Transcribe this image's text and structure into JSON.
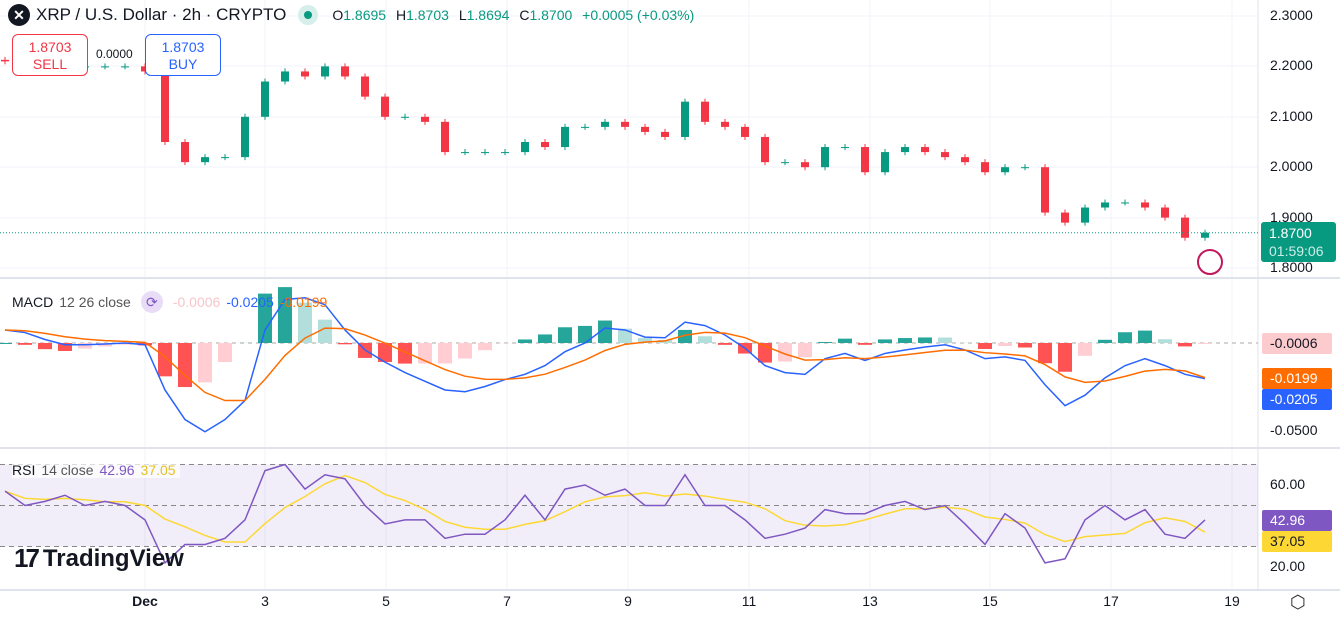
{
  "header": {
    "symbol_icon": "xrp-logo",
    "title": "XRP / U.S. Dollar · 2h · CRYPTO",
    "market_status": "open",
    "o_label": "O",
    "o": "1.8695",
    "h_label": "H",
    "h": "1.8703",
    "l_label": "L",
    "l": "1.8694",
    "c_label": "C",
    "c": "1.8700",
    "change": "+0.0005 (+0.03%)"
  },
  "trade": {
    "sell_price": "1.8703",
    "sell_label": "SELL",
    "spread": "0.0000",
    "buy_price": "1.8703",
    "buy_label": "BUY"
  },
  "price_axis": {
    "ticks": [
      "2.3000",
      "2.2000",
      "2.1000",
      "2.0000",
      "1.9000",
      "1.8000"
    ],
    "current_price": "1.8700",
    "countdown": "01:59:06"
  },
  "macd_legend": {
    "name": "MACD",
    "params": "12 26 close",
    "histogram": "-0.0006",
    "macd": "-0.0205",
    "signal": "-0.0199"
  },
  "macd_axis": {
    "ticks": [
      "-0.0500"
    ],
    "hist_tag": "-0.0006",
    "signal_tag": "-0.0199",
    "macd_tag": "-0.0205"
  },
  "rsi_legend": {
    "name": "RSI",
    "params": "14 close",
    "rsi": "42.96",
    "ma": "37.05"
  },
  "rsi_axis": {
    "ticks": [
      "60.00",
      "20.00"
    ],
    "rsi_tag": "42.96",
    "ma_tag": "37.05"
  },
  "x_axis": {
    "ticks": [
      "Dec",
      "3",
      "5",
      "7",
      "9",
      "11",
      "13",
      "15",
      "17",
      "19"
    ]
  },
  "watermark": "TradingView",
  "colors": {
    "up": "#089981",
    "down": "#f23645",
    "macd": "#2962ff",
    "signal": "#ff6d00",
    "rsi": "#7e57c2",
    "rsi_ma": "#fdd835"
  },
  "chart_data": {
    "type": "candlestick",
    "note_interval": "8h samples",
    "x": [
      "Nov 28 16:00",
      "Nov 29 00:00",
      "Nov 29 08:00",
      "Nov 29 16:00",
      "Nov 30 00:00",
      "Nov 30 08:00",
      "Nov 30 16:00",
      "Dec 1 00:00",
      "Dec 1 08:00",
      "Dec 1 16:00",
      "Dec 2 00:00",
      "Dec 2 08:00",
      "Dec 2 16:00",
      "Dec 3 00:00",
      "Dec 3 08:00",
      "Dec 3 16:00",
      "Dec 4 00:00",
      "Dec 4 08:00",
      "Dec 4 16:00",
      "Dec 5 00:00",
      "Dec 5 08:00",
      "Dec 5 16:00",
      "Dec 6 00:00",
      "Dec 6 08:00",
      "Dec 6 16:00",
      "Dec 7 00:00",
      "Dec 7 08:00",
      "Dec 7 16:00",
      "Dec 8 00:00",
      "Dec 8 08:00",
      "Dec 8 16:00",
      "Dec 9 00:00",
      "Dec 9 08:00",
      "Dec 9 16:00",
      "Dec 10 00:00",
      "Dec 10 08:00",
      "Dec 10 16:00",
      "Dec 11 00:00",
      "Dec 11 08:00",
      "Dec 11 16:00",
      "Dec 12 00:00",
      "Dec 12 08:00",
      "Dec 12 16:00",
      "Dec 13 00:00",
      "Dec 13 08:00",
      "Dec 13 16:00",
      "Dec 14 00:00",
      "Dec 14 08:00",
      "Dec 14 16:00",
      "Dec 15 00:00",
      "Dec 15 08:00",
      "Dec 15 16:00",
      "Dec 16 00:00",
      "Dec 16 08:00",
      "Dec 16 16:00",
      "Dec 17 00:00",
      "Dec 17 08:00",
      "Dec 17 16:00",
      "Dec 18 00:00",
      "Dec 18 08:00",
      "Dec 18 16:00"
    ],
    "close": [
      2.21,
      2.2,
      2.2,
      2.2,
      2.2,
      2.2,
      2.2,
      2.19,
      2.05,
      2.01,
      2.02,
      2.02,
      2.1,
      2.17,
      2.19,
      2.18,
      2.2,
      2.18,
      2.14,
      2.1,
      2.1,
      2.09,
      2.03,
      2.03,
      2.03,
      2.03,
      2.05,
      2.04,
      2.08,
      2.08,
      2.09,
      2.08,
      2.07,
      2.06,
      2.13,
      2.09,
      2.08,
      2.06,
      2.01,
      2.01,
      2.0,
      2.04,
      2.04,
      1.99,
      2.03,
      2.04,
      2.03,
      2.02,
      2.01,
      1.99,
      2.0,
      2.0,
      1.91,
      1.89,
      1.92,
      1.93,
      1.93,
      1.92,
      1.9,
      1.86,
      1.87
    ],
    "macd": [
      0.0075,
      0.006,
      0.002,
      -0.001,
      -0.001,
      -0.0006,
      0,
      -0.001,
      -0.027,
      -0.044,
      -0.051,
      -0.044,
      -0.033,
      0.0075,
      0.025,
      0.026,
      0.022,
      0.0075,
      -0.004,
      -0.011,
      -0.017,
      -0.022,
      -0.027,
      -0.028,
      -0.025,
      -0.021,
      -0.018,
      -0.013,
      -0.005,
      0,
      0.0086,
      0.0075,
      0.0034,
      0.003,
      0.012,
      0.01,
      0.0046,
      -0.003,
      -0.013,
      -0.017,
      -0.018,
      -0.009,
      -0.006,
      -0.01,
      -0.006,
      -0.004,
      -0.0023,
      -0.001,
      -0.004,
      -0.009,
      -0.008,
      -0.01,
      -0.024,
      -0.036,
      -0.03,
      -0.02,
      -0.013,
      -0.009,
      -0.013,
      -0.018,
      -0.0205
    ],
    "rsi": [
      57,
      50,
      52,
      55,
      50,
      52,
      50,
      43,
      22,
      31,
      31,
      34,
      43,
      67,
      70,
      58,
      65,
      63,
      50,
      41,
      43,
      43,
      34,
      36,
      36,
      43,
      55,
      43,
      58,
      60,
      55,
      58,
      50,
      50,
      65,
      50,
      50,
      43,
      34,
      36,
      39,
      48,
      46,
      46,
      50,
      52,
      48,
      50,
      41,
      31,
      46,
      39,
      22,
      24,
      43,
      50,
      43,
      48,
      36,
      34,
      42.96
    ],
    "price_range": [
      1.78,
      2.3
    ],
    "macd_range": [
      -0.06,
      0.035
    ],
    "rsi_range": [
      10,
      80
    ],
    "rsi_bands": [
      70,
      50,
      30
    ],
    "grid": true
  }
}
